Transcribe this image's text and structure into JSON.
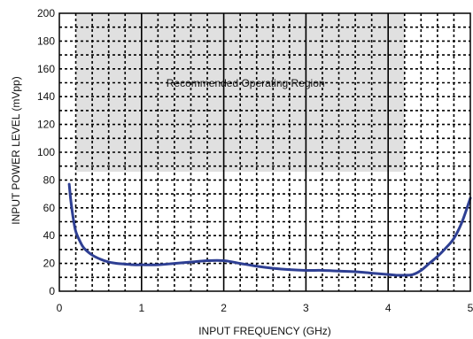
{
  "chart_data": {
    "type": "line",
    "xlabel": "INPUT FREQUENCY (GHz)",
    "ylabel": "INPUT POWER LEVEL (mVpp)",
    "xlim": [
      0,
      5
    ],
    "ylim": [
      0,
      200
    ],
    "x_ticks": [
      "0",
      "1",
      "2",
      "3",
      "4",
      "5"
    ],
    "y_ticks": [
      "0",
      "20",
      "40",
      "60",
      "80",
      "100",
      "120",
      "140",
      "160",
      "180",
      "200"
    ],
    "grid": true,
    "minor_grid": "dotted",
    "shaded_region": {
      "label": "Recommended Operating Region",
      "x": [
        0.2,
        4.2
      ],
      "y": [
        86,
        200
      ],
      "color": "#e0e0e0"
    },
    "series": [
      {
        "color": "#2e3f93",
        "x": [
          0.12,
          0.14,
          0.17,
          0.2,
          0.25,
          0.3,
          0.4,
          0.5,
          0.6,
          0.7,
          0.8,
          0.9,
          1.0,
          1.2,
          1.4,
          1.6,
          1.8,
          2.0,
          2.2,
          2.4,
          2.6,
          2.8,
          3.0,
          3.2,
          3.4,
          3.6,
          3.8,
          4.0,
          4.1,
          4.2,
          4.3,
          4.4,
          4.5,
          4.6,
          4.7,
          4.8,
          4.9,
          5.0
        ],
        "y": [
          77,
          65,
          52,
          43,
          36,
          31,
          26,
          23,
          21,
          20,
          19.5,
          19,
          19,
          19,
          20,
          21,
          22,
          22,
          20,
          18,
          16.5,
          15.5,
          15,
          15,
          14.5,
          14,
          13,
          12,
          11.5,
          11.5,
          12,
          15,
          20,
          25,
          31,
          38,
          50,
          67
        ]
      }
    ]
  }
}
